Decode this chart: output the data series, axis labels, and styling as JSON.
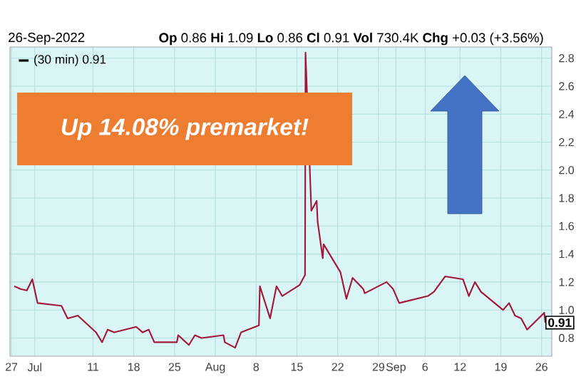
{
  "chart_data": {
    "type": "line",
    "subtitle": "26-Sep-2022",
    "annotations": [
      "**Op** 0.86 **Hi** 1.09 **Lo** 0.86 **Cl** 0.91 **Vol** 730.4K **Chg** +0.03 (+3.56%)",
      "Up 14.08% premarket!",
      {
        "text": "0.91",
        "x": "2022-09-26T15:30",
        "y": 0.91
      }
    ],
    "series": [
      {
        "name": "(30 min) 0.91",
        "color": "#a3183a",
        "x": [
          "2022-06-27T11:30",
          "2022-06-28T14:00",
          "2022-06-29T15:30",
          "2022-06-30T14:00",
          "2022-07-01T11:30",
          "2022-07-05T14:00",
          "2022-07-06T15:30",
          "2022-07-08T09:30",
          "2022-07-11T12:30",
          "2022-07-12T13:30",
          "2022-07-13T12:30",
          "2022-07-14T15:30",
          "2022-07-18T10:00",
          "2022-07-19T12:30",
          "2022-07-20T13:30",
          "2022-07-21T12:30",
          "2022-07-25T09:30",
          "2022-07-25T15:00",
          "2022-07-27T11:00",
          "2022-07-28T12:00",
          "2022-07-29T15:00",
          "2022-08-02T09:30",
          "2022-08-02T15:00",
          "2022-08-04T09:30",
          "2022-08-05T10:00",
          "2022-08-08T11:30",
          "2022-08-08T15:30",
          "2022-08-10T09:30",
          "2022-08-11T12:00",
          "2022-08-12T11:30",
          "2022-08-15T12:00",
          "2022-08-16T09:30",
          "2022-08-16T11:30",
          "2022-08-16T13:30",
          "2022-08-16T15:30",
          "2022-08-17T11:30",
          "2022-08-18T09:30",
          "2022-08-18T13:30",
          "2022-08-19T10:30",
          "2022-08-19T14:00",
          "2022-08-22T11:30",
          "2022-08-23T12:00",
          "2022-08-24T13:30",
          "2022-08-26T09:30",
          "2022-08-26T15:30",
          "2022-08-30T09:30",
          "2022-08-31T12:30",
          "2022-09-01T13:30",
          "2022-09-06T11:30",
          "2022-09-07T12:30",
          "2022-09-09T10:30",
          "2022-09-12T12:00",
          "2022-09-13T12:30",
          "2022-09-14T13:30",
          "2022-09-15T14:30",
          "2022-09-19T09:30",
          "2022-09-20T10:00",
          "2022-09-21T10:30",
          "2022-09-22T12:00",
          "2022-09-23T12:30",
          "2022-09-26T11:00",
          "2022-09-26T15:30"
        ],
        "values": [
          1.17,
          1.15,
          1.14,
          1.22,
          1.05,
          1.03,
          0.94,
          0.96,
          0.84,
          0.77,
          0.86,
          0.84,
          0.88,
          0.84,
          0.86,
          0.77,
          0.77,
          0.82,
          0.75,
          0.82,
          0.8,
          0.82,
          0.77,
          0.73,
          0.84,
          0.89,
          1.17,
          0.94,
          1.17,
          1.1,
          1.18,
          1.25,
          2.84,
          null,
          null,
          1.71,
          1.78,
          1.63,
          1.37,
          1.47,
          1.27,
          1.08,
          1.23,
          1.15,
          1.12,
          1.2,
          1.15,
          1.05,
          1.1,
          1.13,
          1.24,
          1.22,
          1.1,
          1.2,
          1.13,
          1.0,
          1.05,
          0.96,
          0.94,
          0.86,
          0.98,
          0.91
        ]
      }
    ],
    "xlim": [
      "2022-06-26T18:00",
      "2022-09-27T18:00"
    ],
    "xticks": [
      {
        "value": "2022-06-27",
        "label": "27"
      },
      {
        "value": "2022-07-01",
        "label": "Jul"
      },
      {
        "value": "2022-07-11",
        "label": "11"
      },
      {
        "value": "2022-07-18",
        "label": "18"
      },
      {
        "value": "2022-07-25",
        "label": "25"
      },
      {
        "value": "2022-08-01",
        "label": "Aug"
      },
      {
        "value": "2022-08-08",
        "label": "8"
      },
      {
        "value": "2022-08-15",
        "label": "15"
      },
      {
        "value": "2022-08-22",
        "label": "22"
      },
      {
        "value": "2022-08-29",
        "label": "29"
      },
      {
        "value": "2022-09-01",
        "label": "Sep"
      },
      {
        "value": "2022-09-06",
        "label": "6"
      },
      {
        "value": "2022-09-12",
        "label": "12"
      },
      {
        "value": "2022-09-19",
        "label": "19"
      },
      {
        "value": "2022-09-26",
        "label": "26"
      }
    ],
    "ylim": [
      0.67,
      2.88
    ],
    "yticks": [
      0.8,
      {
        "value": 1.0,
        "label": "1.0"
      },
      1.2,
      1.4,
      1.6,
      1.8,
      {
        "value": 2.0,
        "label": "2.0"
      },
      2.2,
      2.4,
      2.6,
      2.8
    ],
    "grid": true,
    "legend": "top left"
  }
}
